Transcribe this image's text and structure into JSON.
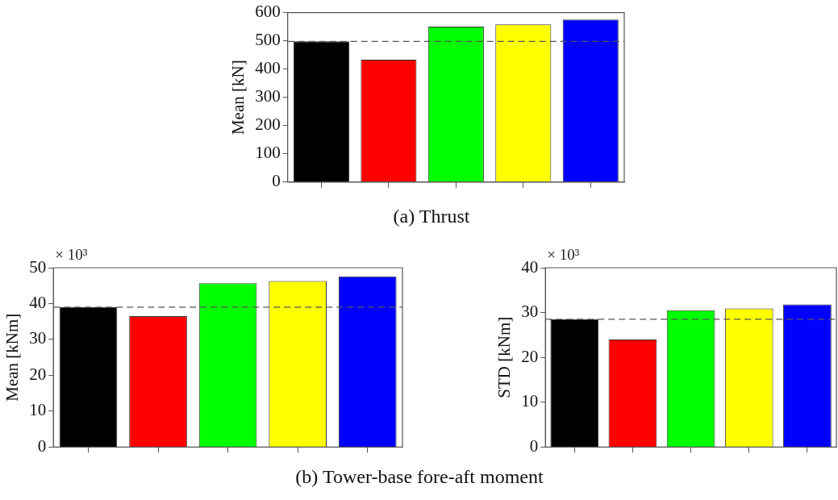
{
  "chart_data": [
    {
      "type": "bar",
      "title": "(a) Thrust",
      "ylabel": "Mean [kN]",
      "categories": [
        null,
        null,
        null,
        null,
        null
      ],
      "values": [
        498,
        433,
        550,
        558,
        575
      ],
      "colors": [
        "#000000",
        "#ff0000",
        "#00ff00",
        "#ffff00",
        "#0000ff"
      ],
      "ylim": [
        0,
        600
      ],
      "yticks": [
        0,
        100,
        200,
        300,
        400,
        500,
        600
      ],
      "grid": false,
      "legend": false,
      "ref_lines": [
        {
          "axis": "y",
          "value": 498,
          "color": "#555555",
          "line_style": "dashed"
        }
      ]
    },
    {
      "type": "bar",
      "title": "(b) Tower-base fore-aft moment",
      "ylabel": "Mean [kNm]",
      "annotations": [
        "× 10³"
      ],
      "categories": [
        null,
        null,
        null,
        null,
        null
      ],
      "values": [
        39,
        36.5,
        45.7,
        46.3,
        47.6
      ],
      "colors": [
        "#000000",
        "#ff0000",
        "#00ff00",
        "#ffff00",
        "#0000ff"
      ],
      "ylim": [
        0,
        50
      ],
      "yticks": [
        0,
        10,
        20,
        30,
        40,
        50
      ],
      "grid": false,
      "legend": false,
      "ref_lines": [
        {
          "axis": "y",
          "value": 39,
          "color": "#555555",
          "line_style": "dashed"
        }
      ]
    },
    {
      "type": "bar",
      "ylabel": "STD [kNm]",
      "annotations": [
        "× 10³"
      ],
      "categories": [
        null,
        null,
        null,
        null,
        null
      ],
      "values": [
        28.5,
        24,
        30.5,
        30.9,
        31.8
      ],
      "colors": [
        "#000000",
        "#ff0000",
        "#00ff00",
        "#ffff00",
        "#0000ff"
      ],
      "ylim": [
        0,
        40
      ],
      "yticks": [
        0,
        10,
        20,
        30,
        40
      ],
      "grid": false,
      "legend": false,
      "ref_lines": [
        {
          "axis": "y",
          "value": 28.5,
          "color": "#555555",
          "line_style": "dashed"
        }
      ]
    }
  ]
}
